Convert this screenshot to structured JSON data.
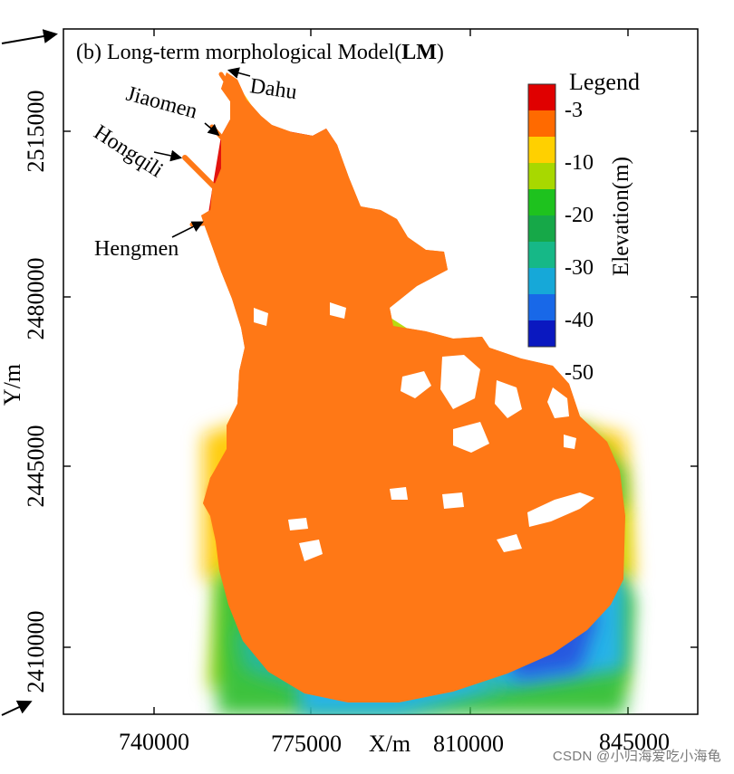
{
  "panel_title": {
    "prefix": "(b) Long-term morphological Model(",
    "bold": "LM",
    "suffix": ")"
  },
  "axes": {
    "xlabel": "X/m",
    "ylabel": "Y/m",
    "x_ticks": [
      "740000",
      "775000",
      "810000",
      "845000"
    ],
    "y_ticks": [
      "2515000",
      "2480000",
      "2445000",
      "2410000"
    ]
  },
  "channel_labels": [
    "Dahu",
    "Jiaomen",
    "Hongqili",
    "Hengmen"
  ],
  "legend": {
    "title": "Legend",
    "axis_label": "Elevation(m)",
    "tick_labels": [
      "-3",
      "-10",
      "-20",
      "-30",
      "-40",
      "-50"
    ],
    "colors": [
      "#e00000",
      "#ff6a00",
      "#ffd000",
      "#a8d800",
      "#1ec21e",
      "#16a848",
      "#16b887",
      "#16a8d8",
      "#1868e8",
      "#0a18c0"
    ]
  },
  "map_colors": {
    "shallow": "#e3140e",
    "upper": "#ff7816",
    "mid": "#ffcc10",
    "lime": "#b8dc10",
    "green": "#3cc23c",
    "teal": "#28b89c",
    "cyan": "#28b4e8",
    "blue": "#2858e0"
  },
  "watermark": "CSDN @小归海爱吃小海龟"
}
